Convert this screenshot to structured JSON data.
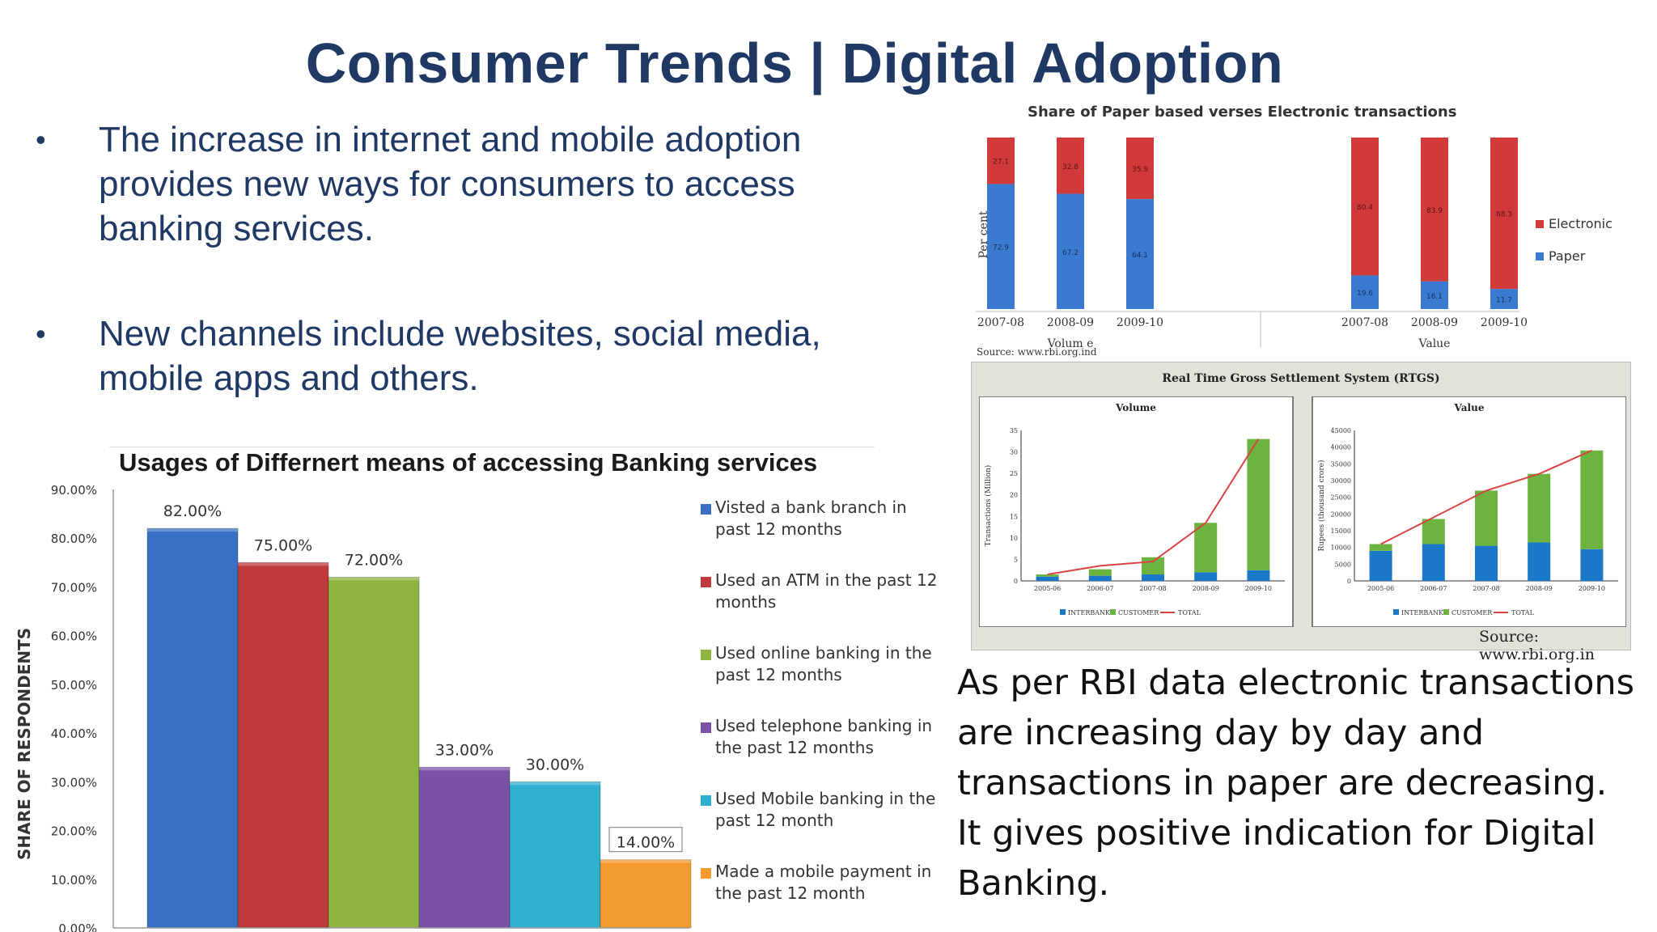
{
  "slide": {
    "title": "Consumer Trends | Digital Adoption",
    "bullets": [
      "The increase in internet and mobile adoption provides new ways for consumers to access banking services.",
      "New channels include websites, social media, mobile apps and others."
    ],
    "bullet_symbol": "•",
    "paragraph": "As per RBI data electronic transactions are increasing day by day and transactions in paper are decreasing. It gives positive indication for Digital Banking."
  },
  "chart_data": [
    {
      "type": "bar",
      "title": "Usages of Differnert means of accessing Banking services",
      "ylabel": "SHARE OF RESPONDENTS",
      "xlabel": "",
      "ylim": [
        0,
        90
      ],
      "yticks": [
        "0.00%",
        "10.00%",
        "20.00%",
        "30.00%",
        "40.00%",
        "50.00%",
        "60.00%",
        "70.00%",
        "80.00%",
        "90.00%"
      ],
      "categories": [
        "Visted a bank branch in past 12 months",
        "Used  an ATM in the past 12 months",
        "Used  online banking in the past 12 months",
        "Used telephone banking in the past 12 months",
        "Used Mobile banking in the past 12 month",
        "Made a mobile payment in the past 12 month"
      ],
      "values": [
        82,
        75,
        72,
        33,
        30,
        14
      ],
      "data_labels": [
        "82.00%",
        "75.00%",
        "72.00%",
        "33.00%",
        "30.00%",
        "14.00%"
      ],
      "colors": [
        "#3a70c4",
        "#c0393b",
        "#8db43f",
        "#7b52a6",
        "#2fb0cf",
        "#f39a2e"
      ],
      "legend_placement": "right"
    },
    {
      "type": "bar",
      "stacked": true,
      "title": "Share of Paper based verses  Electronic transactions",
      "ylabel": "Per cent",
      "groups": [
        {
          "label": "Volum e",
          "categories": [
            "2007-08",
            "2008-09",
            "2009-10"
          ],
          "series": [
            {
              "name": "Paper",
              "values": [
                72.9,
                67.2,
                64.1
              ],
              "labels": [
                "72.9",
                "67.2",
                "64.1"
              ]
            },
            {
              "name": "Electronic",
              "values": [
                27.1,
                32.8,
                35.9
              ],
              "labels": [
                "27.1",
                "32.8",
                "35.9"
              ]
            }
          ]
        },
        {
          "label": "Value",
          "categories": [
            "2007-08",
            "2008-09",
            "2009-10"
          ],
          "series": [
            {
              "name": "Paper",
              "values": [
                19.6,
                16.1,
                11.7
              ],
              "labels": [
                "19.6",
                "16.1",
                "11.7"
              ]
            },
            {
              "name": "Electronic",
              "values": [
                80.4,
                83.9,
                88.3
              ],
              "labels": [
                "80.4",
                "83.9",
                "88.3"
              ]
            }
          ]
        }
      ],
      "colors": {
        "Paper": "#3a7ad0",
        "Electronic": "#d03a3a"
      },
      "legend_placement": "right",
      "source": "Source: www.rbi.org.ind"
    },
    {
      "type": "bar",
      "stacked": true,
      "title": "Real Time Gross Settlement System (RTGS)",
      "source": "Source: www.rbi.org.in",
      "panels": [
        {
          "title": "Volume",
          "ylabel": "Transactions (Million)",
          "ylim": [
            0,
            35
          ],
          "yticks": [
            "0",
            "5",
            "10",
            "15",
            "20",
            "25",
            "30",
            "35"
          ],
          "categories": [
            "2005-06",
            "2006-07",
            "2007-08",
            "2008-09",
            "2009-10"
          ],
          "series": [
            {
              "name": "INTERBANK",
              "values": [
                1.0,
                1.2,
                1.5,
                2.0,
                2.5
              ]
            },
            {
              "name": "CUSTOMER",
              "values": [
                0.5,
                1.5,
                4.0,
                11.5,
                30.5
              ]
            },
            {
              "name": "TOTAL",
              "values": [
                1.5,
                3.5,
                4.5,
                13.5,
                33
              ]
            }
          ]
        },
        {
          "title": "Value",
          "ylabel": "Rupees (thousand crore)",
          "ylim": [
            0,
            45000
          ],
          "yticks": [
            "0",
            "5000",
            "10000",
            "15000",
            "20000",
            "25000",
            "30000",
            "35000",
            "40000",
            "45000"
          ],
          "categories": [
            "2005-06",
            "2006-07",
            "2007-08",
            "2008-09",
            "2009-10"
          ],
          "series": [
            {
              "name": "INTERBANK",
              "values": [
                9000,
                11000,
                10500,
                11500,
                9500
              ]
            },
            {
              "name": "CUSTOMER",
              "values": [
                2000,
                7500,
                16500,
                20500,
                29500
              ]
            },
            {
              "name": "TOTAL",
              "values": [
                11000,
                19000,
                27000,
                32000,
                39000
              ]
            }
          ]
        }
      ],
      "colors": {
        "INTERBANK": "#1b78c8",
        "CUSTOMER": "#6cb33f",
        "TOTAL": "#d94343"
      }
    }
  ]
}
